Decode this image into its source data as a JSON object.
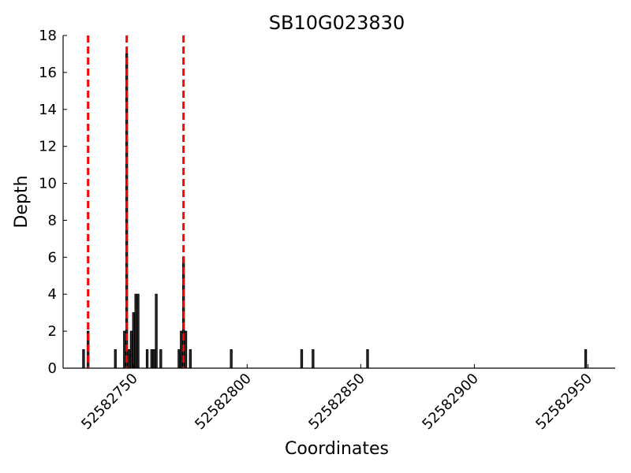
{
  "chart_data": {
    "type": "bar",
    "title": "SB10G023830",
    "xlabel": "Coordinates",
    "ylabel": "Depth",
    "xlim": [
      52582719,
      52582962
    ],
    "ylim": [
      0,
      18
    ],
    "x_ticks": [
      52582750,
      52582800,
      52582850,
      52582900,
      52582950
    ],
    "y_ticks": [
      0,
      2,
      4,
      6,
      8,
      10,
      12,
      14,
      16,
      18
    ],
    "grid": false,
    "bars": [
      {
        "x": 52582728,
        "depth": 1
      },
      {
        "x": 52582730,
        "depth": 2
      },
      {
        "x": 52582742,
        "depth": 1
      },
      {
        "x": 52582746,
        "depth": 2
      },
      {
        "x": 52582747,
        "depth": 17
      },
      {
        "x": 52582748,
        "depth": 1
      },
      {
        "x": 52582749,
        "depth": 2
      },
      {
        "x": 52582750,
        "depth": 3
      },
      {
        "x": 52582751,
        "depth": 4
      },
      {
        "x": 52582752,
        "depth": 4
      },
      {
        "x": 52582756,
        "depth": 1
      },
      {
        "x": 52582758,
        "depth": 1
      },
      {
        "x": 52582759,
        "depth": 1
      },
      {
        "x": 52582760,
        "depth": 4
      },
      {
        "x": 52582762,
        "depth": 1
      },
      {
        "x": 52582770,
        "depth": 1
      },
      {
        "x": 52582771,
        "depth": 2
      },
      {
        "x": 52582772,
        "depth": 6
      },
      {
        "x": 52582773,
        "depth": 2
      },
      {
        "x": 52582775,
        "depth": 1
      },
      {
        "x": 52582793,
        "depth": 1
      },
      {
        "x": 52582824,
        "depth": 1
      },
      {
        "x": 52582829,
        "depth": 1
      },
      {
        "x": 52582853,
        "depth": 1
      },
      {
        "x": 52582949,
        "depth": 1
      }
    ],
    "reference_lines": [
      {
        "x": 52582730,
        "color": "#ff0000"
      },
      {
        "x": 52582747,
        "color": "#ff0000"
      },
      {
        "x": 52582772,
        "color": "#ff0000"
      }
    ],
    "bar_color": "#333333",
    "bar_edge_color": "#000000"
  }
}
